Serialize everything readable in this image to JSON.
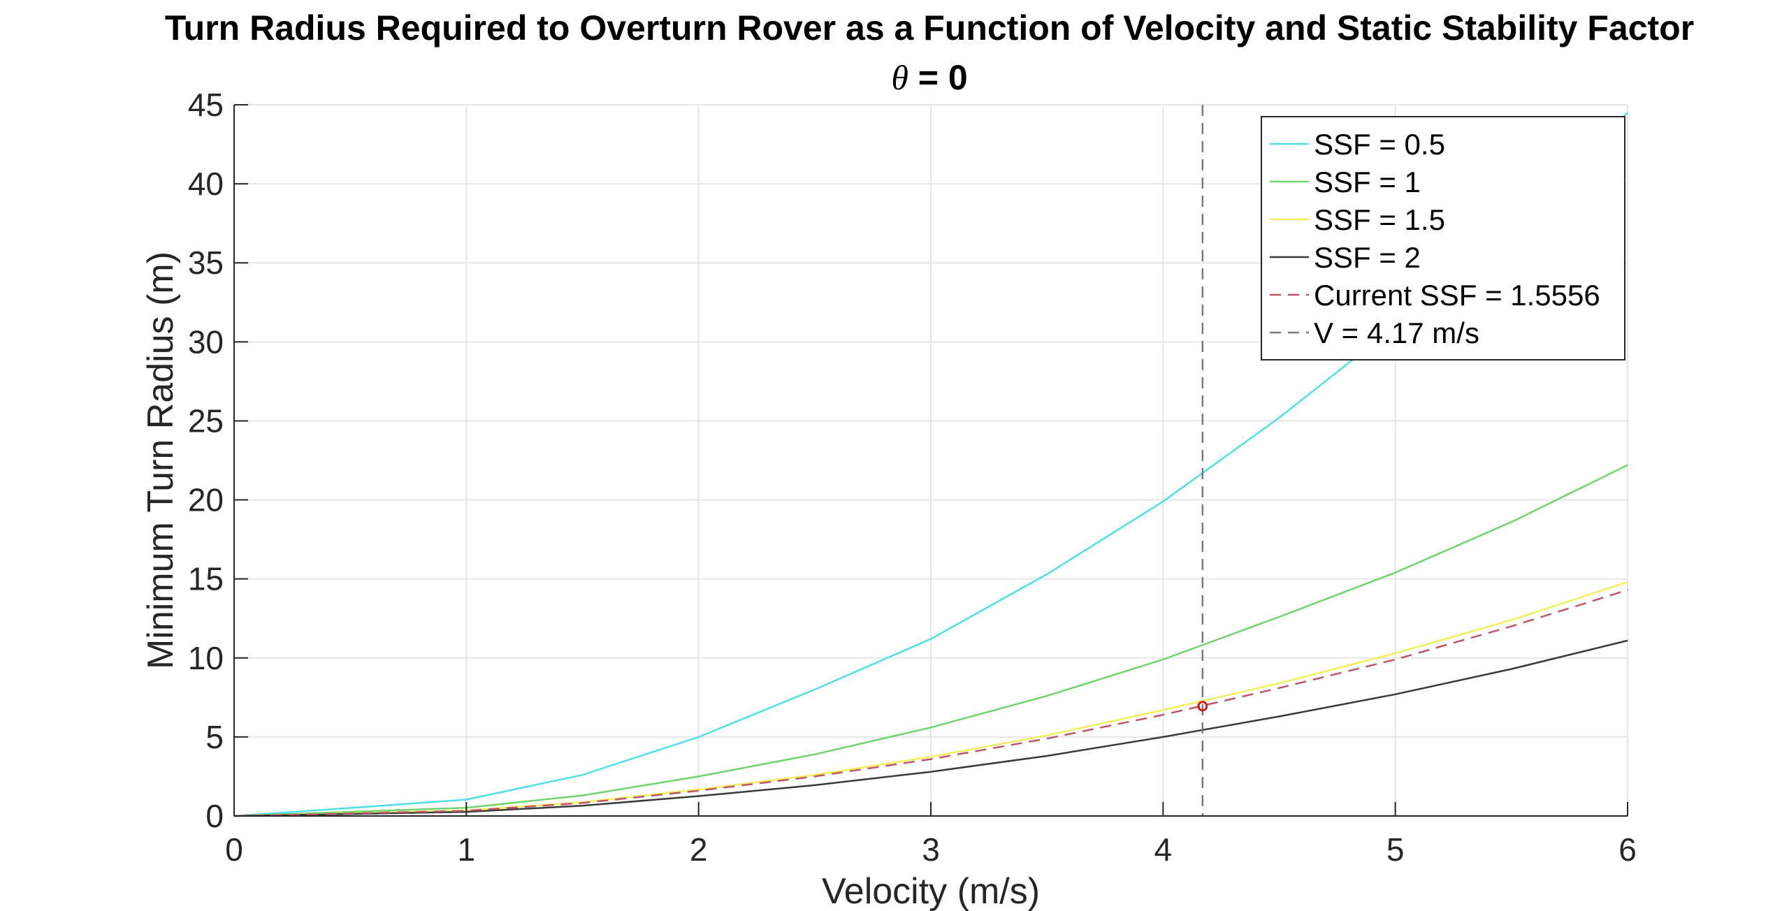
{
  "chart_data": {
    "type": "line",
    "title": "Turn Radius Required to Overturn Rover as a Function of Velocity and Static Stability Factor",
    "subtitle_symbol": "θ",
    "subtitle_rest": " = 0",
    "xlabel": "Velocity (m/s)",
    "ylabel": "Minimum Turn Radius (m)",
    "xlim": [
      0,
      6
    ],
    "ylim": [
      0,
      45
    ],
    "xticks": [
      0,
      1,
      2,
      3,
      4,
      5,
      6
    ],
    "yticks": [
      0,
      5,
      10,
      15,
      20,
      25,
      30,
      35,
      40,
      45
    ],
    "grid": true,
    "legend_position": "top-right",
    "x": [
      0,
      0.5,
      1,
      1.5,
      2,
      2.5,
      3,
      3.5,
      4,
      4.5,
      5,
      5.5,
      6
    ],
    "series": [
      {
        "name": "SSF = 0.5",
        "color": "#4ee0e6",
        "style": "solid",
        "values": [
          0,
          0.51,
          1.04,
          2.6,
          5.0,
          8.0,
          11.2,
          15.3,
          19.9,
          25.2,
          31.0,
          37.5,
          44.5
        ]
      },
      {
        "name": "SSF = 1",
        "color": "#6fd46c",
        "style": "solid",
        "values": [
          0,
          0.26,
          0.52,
          1.3,
          2.5,
          3.9,
          5.6,
          7.6,
          9.9,
          12.6,
          15.4,
          18.6,
          22.2
        ]
      },
      {
        "name": "SSF = 1.5",
        "color": "#f3ef5c",
        "style": "solid",
        "values": [
          0,
          0.17,
          0.35,
          0.87,
          1.68,
          2.6,
          3.75,
          5.1,
          6.7,
          8.4,
          10.3,
          12.4,
          14.8
        ]
      },
      {
        "name": "SSF = 2",
        "color": "#3a3a3a",
        "style": "solid",
        "values": [
          0,
          0.13,
          0.26,
          0.65,
          1.26,
          1.95,
          2.8,
          3.8,
          5.0,
          6.3,
          7.7,
          9.3,
          11.1
        ]
      },
      {
        "name": "Current SSF = 1.5556",
        "color": "#c0556a",
        "style": "dashed",
        "values": [
          0,
          0.16,
          0.33,
          0.82,
          1.6,
          2.5,
          3.6,
          4.9,
          6.4,
          8.1,
          9.9,
          12.0,
          14.3
        ]
      },
      {
        "name": "V = 4.17 m/s",
        "color": "#7a7a7a",
        "style": "dashed",
        "vertical_x": 4.17
      }
    ],
    "marker": {
      "x": 4.17,
      "y": 6.95,
      "color": "#cc1f1f"
    }
  }
}
